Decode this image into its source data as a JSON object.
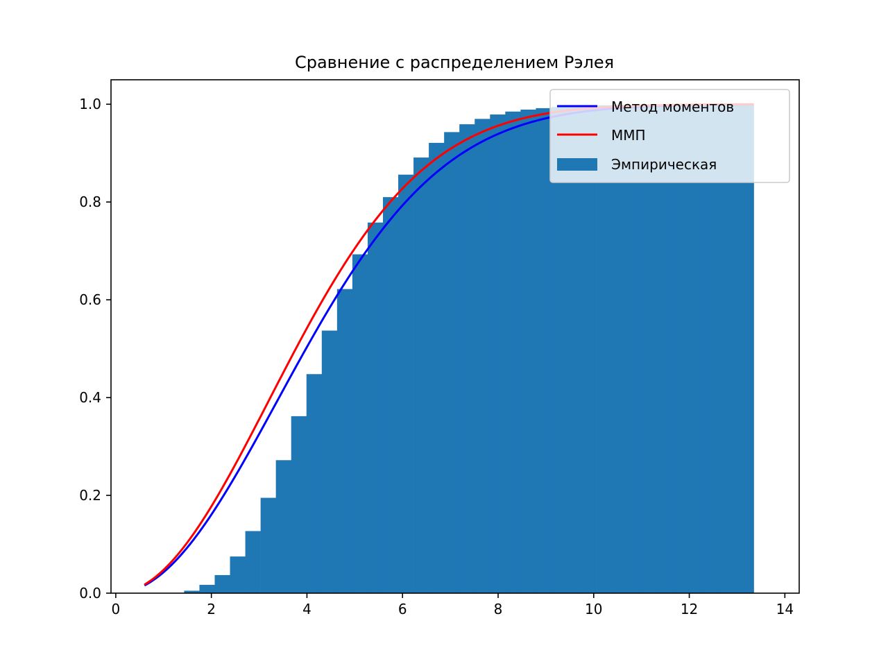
{
  "chart_data": {
    "type": "area",
    "title": "Сравнение с распределением Рэлея",
    "xlabel": "",
    "ylabel": "",
    "xlim": [
      -0.1,
      14.3
    ],
    "ylim": [
      0,
      1.05
    ],
    "xticks": [
      0,
      2,
      4,
      6,
      8,
      10,
      12,
      14
    ],
    "yticks": [
      0.0,
      0.2,
      0.4,
      0.6,
      0.8,
      1.0
    ],
    "xtick_labels": [
      "0",
      "2",
      "4",
      "6",
      "8",
      "10",
      "12",
      "14"
    ],
    "ytick_labels": [
      "0.0",
      "0.2",
      "0.4",
      "0.6",
      "0.8",
      "1.0"
    ],
    "grid": false,
    "legend_position": "top-right",
    "series": [
      {
        "name": "Метод моментов",
        "type": "line",
        "color": "#0000ff",
        "sigma": 3.38,
        "x_range": [
          0.6,
          13.35
        ]
      },
      {
        "name": "ММП",
        "type": "line",
        "color": "#ff0000",
        "sigma": 3.2,
        "x_range": [
          0.6,
          13.35
        ]
      },
      {
        "name": "Эмпирическая",
        "type": "histogram",
        "color": "#1f77b4",
        "bin_edges": [
          1.11,
          1.43,
          1.75,
          2.07,
          2.39,
          2.71,
          3.03,
          3.35,
          3.67,
          3.99,
          4.31,
          4.63,
          4.95,
          5.27,
          5.59,
          5.91,
          6.23,
          6.55,
          6.87,
          7.19,
          7.51,
          7.83,
          8.15,
          8.47,
          8.79,
          9.11,
          9.43,
          9.75,
          10.07,
          10.39,
          10.71,
          11.03,
          11.35,
          11.67,
          11.99,
          12.31,
          12.63,
          12.95,
          13.35
        ],
        "values": [
          0.0,
          0.005,
          0.017,
          0.037,
          0.075,
          0.127,
          0.195,
          0.272,
          0.362,
          0.448,
          0.537,
          0.622,
          0.693,
          0.758,
          0.81,
          0.856,
          0.891,
          0.921,
          0.943,
          0.959,
          0.97,
          0.979,
          0.985,
          0.989,
          0.992,
          0.994,
          0.996,
          0.997,
          0.998,
          0.999,
          0.999,
          1.0,
          1.0,
          1.0,
          1.0,
          1.0,
          1.0,
          1.0
        ]
      }
    ]
  }
}
